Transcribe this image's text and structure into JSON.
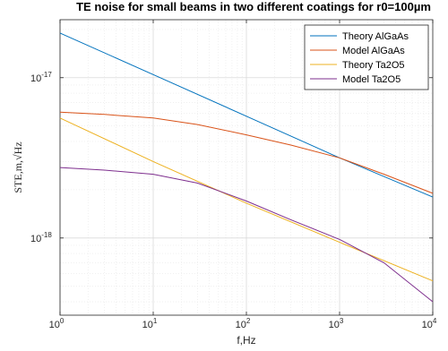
{
  "chart_data": {
    "type": "line",
    "title": "TE noise for small beams in two different coatings for r0=100µm",
    "xlabel": "f,Hz",
    "ylabel": "STE,m,√Hz",
    "x_scale": "log",
    "y_scale": "log",
    "xlim": [
      1,
      10000
    ],
    "ylim": [
      3.3e-19,
      2.3e-17
    ],
    "x_ticks": [
      {
        "value": 1,
        "base": "10",
        "exp": "0"
      },
      {
        "value": 10,
        "base": "10",
        "exp": "1"
      },
      {
        "value": 100,
        "base": "10",
        "exp": "2"
      },
      {
        "value": 1000,
        "base": "10",
        "exp": "3"
      },
      {
        "value": 10000,
        "base": "10",
        "exp": "4"
      }
    ],
    "y_ticks": [
      {
        "value": 1e-18,
        "base": "10",
        "exp": "-18"
      },
      {
        "value": 1e-17,
        "base": "10",
        "exp": "-17"
      }
    ],
    "grid": true,
    "minor_grid": true,
    "legend_position": "top-right",
    "series": [
      {
        "name": "Theory AlGaAs",
        "color": "#0072BD",
        "x": [
          1,
          10,
          100,
          1000,
          10000
        ],
        "y": [
          1.9e-17,
          1.045e-17,
          5.75e-18,
          3.16e-18,
          1.8e-18
        ]
      },
      {
        "name": "Model AlGaAs",
        "color": "#D95319",
        "x": [
          1,
          3,
          10,
          30,
          100,
          300,
          1000,
          3000,
          10000
        ],
        "y": [
          6.1e-18,
          5.9e-18,
          5.6e-18,
          5.1e-18,
          4.4e-18,
          3.8e-18,
          3.16e-18,
          2.5e-18,
          1.9e-18
        ]
      },
      {
        "name": "Theory Ta2O5",
        "color": "#EDB120",
        "x": [
          1,
          10,
          100,
          1000,
          10000
        ],
        "y": [
          5.6e-18,
          3e-18,
          1.65e-18,
          9.4e-19,
          5.4e-19
        ]
      },
      {
        "name": "Model Ta2O5",
        "color": "#7E2F8E",
        "x": [
          1,
          3,
          10,
          30,
          100,
          300,
          1000,
          3000,
          10000
        ],
        "y": [
          2.75e-18,
          2.65e-18,
          2.5e-18,
          2.2e-18,
          1.7e-18,
          1.3e-18,
          9.8e-19,
          7e-19,
          4e-19
        ]
      }
    ]
  }
}
